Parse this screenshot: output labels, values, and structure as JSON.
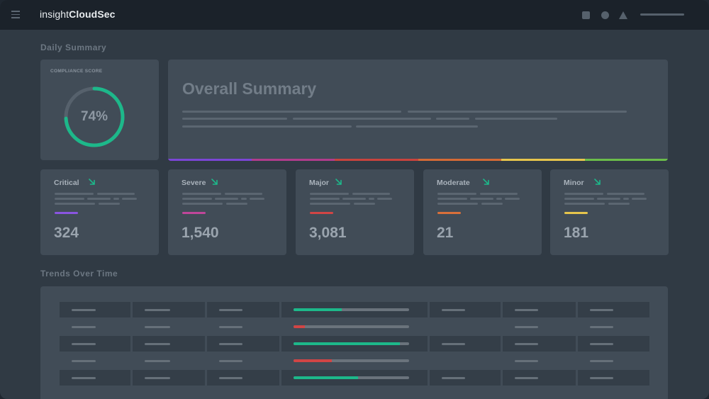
{
  "topbar": {
    "brand_prefix": "insight",
    "brand_suffix": "CloudSec",
    "icons": [
      "menu-icon",
      "square-icon",
      "circle-icon",
      "warning-icon"
    ]
  },
  "daily_summary": {
    "section_title": "Daily Summary",
    "compliance": {
      "label": "COMPLIANCE SCORE",
      "value": "74%",
      "percent": 74,
      "color": "#1db88a"
    },
    "overall": {
      "title": "Overall Summary",
      "bar_colors": [
        "#7b46d6",
        "#b13c8c",
        "#c9433d",
        "#d46a36",
        "#e6c54c",
        "#6bbd4a"
      ]
    }
  },
  "severities": [
    {
      "label": "Critical",
      "value": "324",
      "color": "#8a55e0"
    },
    {
      "label": "Severe",
      "value": "1,540",
      "color": "#c0469a"
    },
    {
      "label": "Major",
      "value": "3,081",
      "color": "#d14545"
    },
    {
      "label": "Moderate",
      "value": "21",
      "color": "#d9703a"
    },
    {
      "label": "Minor",
      "value": "181",
      "color": "#e6c54c"
    }
  ],
  "trend_arrow_color": "#1db88a",
  "trends": {
    "section_title": "Trends Over Time",
    "rows": [
      {
        "progress": 0.42,
        "color": "#1db88a"
      },
      {
        "progress": 0.1,
        "color": "#d14545"
      },
      {
        "progress": 0.92,
        "color": "#1db88a"
      },
      {
        "progress": 0.33,
        "color": "#d14545"
      },
      {
        "progress": 0.56,
        "color": "#1db88a"
      }
    ]
  }
}
